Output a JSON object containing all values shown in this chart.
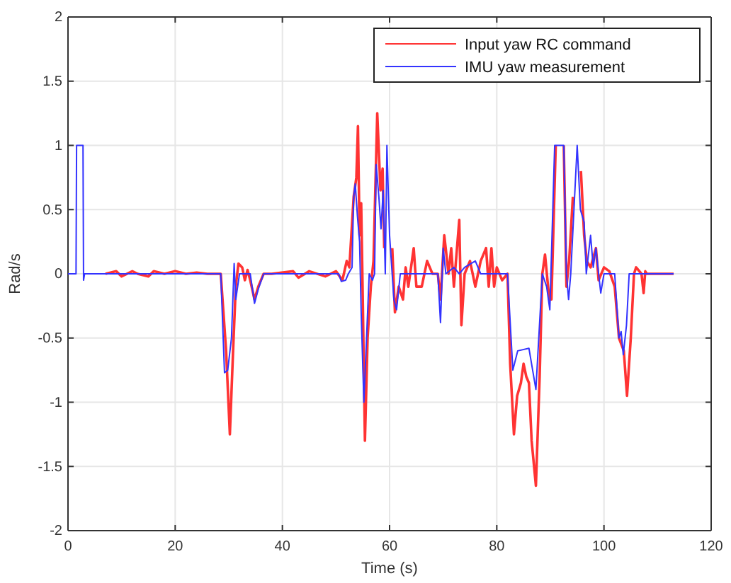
{
  "chart_data": {
    "type": "line",
    "xlabel": "Time (s)",
    "ylabel": "Rad/s",
    "xlim": [
      0,
      120
    ],
    "ylim": [
      -2,
      2
    ],
    "xticks": [
      0,
      20,
      40,
      60,
      80,
      100,
      120
    ],
    "yticks": [
      -2,
      -1.5,
      -1,
      -0.5,
      0,
      0.5,
      1,
      1.5,
      2
    ],
    "grid": true,
    "legend": "top right",
    "line_style": "solid",
    "series": [
      {
        "name": "Input yaw RC command",
        "color": "#ff3333",
        "x": [
          7,
          9,
          10,
          12,
          13,
          15,
          16,
          18,
          20,
          22,
          24,
          26,
          28.5,
          29.5,
          30.2,
          30.8,
          31.3,
          31.8,
          32.5,
          33,
          33.5,
          34,
          34.8,
          35.5,
          36.5,
          38,
          42,
          43,
          45,
          48,
          50,
          51.2,
          52,
          52.5,
          53.3,
          53.8,
          54.1,
          54.4,
          54.7,
          55,
          55.4,
          55.9,
          56.5,
          57,
          57.7,
          58.3,
          58.7,
          59,
          59.9,
          60.5,
          61,
          61.7,
          62.5,
          63,
          63.5,
          64.5,
          65,
          66,
          67,
          68,
          69,
          69.5,
          70.2,
          71,
          71.5,
          72,
          73,
          73.4,
          74,
          75,
          76,
          77,
          78,
          78.5,
          79,
          79.5,
          80,
          81,
          82,
          82.5,
          83.2,
          83.8,
          84.5,
          85,
          85.5,
          86,
          86.5,
          87.3,
          88,
          88.5,
          89,
          89.8,
          90.2,
          91,
          91.8,
          92.2,
          92.5,
          93,
          93.5,
          94.2,
          95,
          95.7,
          96.3,
          96.8,
          97.5,
          98.5,
          99,
          100,
          101,
          102,
          102.8,
          103.7,
          104.3,
          105,
          105.6,
          106,
          107,
          107.4,
          107.7,
          108,
          113
        ],
        "values": [
          0,
          0.02,
          -0.02,
          0.02,
          0,
          -0.02,
          0.02,
          0,
          0.02,
          0,
          0.01,
          0,
          0,
          -0.6,
          -1.25,
          -0.6,
          -0.1,
          0.08,
          0.05,
          -0.05,
          0.03,
          -0.05,
          -0.2,
          -0.1,
          0,
          0,
          0.02,
          -0.03,
          0.02,
          -0.02,
          0.02,
          -0.05,
          0.1,
          0.05,
          0.6,
          0.75,
          1.15,
          0.3,
          0.55,
          -0.2,
          -1.3,
          -0.5,
          -0.1,
          0.1,
          1.25,
          0.65,
          0.82,
          0.2,
          null,
          0.2,
          -0.3,
          -0.1,
          -0.2,
          0.05,
          -0.1,
          0.2,
          -0.1,
          -0.1,
          0.1,
          0,
          0,
          -0.2,
          0.3,
          0,
          0.2,
          -0.1,
          0.42,
          -0.4,
          0,
          0.1,
          -0.1,
          0.1,
          0.2,
          -0.1,
          0.2,
          -0.1,
          0.05,
          -0.05,
          0,
          -0.7,
          -1.25,
          -0.95,
          -0.85,
          -0.7,
          -0.8,
          -0.85,
          -1.3,
          -1.65,
          -0.8,
          0,
          0.15,
          -0.2,
          -0.2,
          1,
          null,
          null,
          1,
          -0.1,
          0.1,
          0.6,
          null,
          0.8,
          0.3,
          0.1,
          0.05,
          0.2,
          -0.05,
          0.05,
          0.02,
          -0.1,
          -0.5,
          -0.6,
          -0.95,
          -0.5,
          0,
          0.05,
          0,
          -0.15,
          0.02,
          0,
          0
        ]
      },
      {
        "name": "IMU yaw measurement",
        "color": "#3333ff",
        "x": [
          0,
          1.5,
          1.6,
          2.8,
          2.9,
          3.1,
          28.5,
          29.2,
          29.8,
          30.5,
          31,
          31.3,
          32,
          34,
          34.8,
          35.5,
          36.5,
          50.5,
          51,
          51.8,
          52.3,
          53,
          53.3,
          53.6,
          54,
          54.4,
          54.7,
          55.2,
          55.8,
          56.2,
          56.8,
          57.2,
          57.5,
          58,
          58.4,
          58.8,
          59.2,
          59.5,
          60,
          60.8,
          61.3,
          62,
          69,
          69.5,
          70,
          70.5,
          72,
          73,
          74,
          76,
          77,
          81,
          82,
          83,
          83.9,
          86,
          87.3,
          88.5,
          89.3,
          89.9,
          90.8,
          92.5,
          93,
          93.4,
          93.8,
          95,
          95.6,
          96.3,
          96.7,
          97.5,
          98,
          98.5,
          99,
          99.4,
          100,
          102,
          102.8,
          103.2,
          103.6,
          104.2,
          104.7,
          113
        ],
        "values": [
          0,
          0,
          1,
          1,
          -0.05,
          0,
          0,
          -0.77,
          -0.75,
          -0.5,
          0.08,
          -0.2,
          0,
          0,
          -0.23,
          -0.12,
          0,
          0,
          -0.06,
          -0.05,
          0,
          0.05,
          0.6,
          0.7,
          0.45,
          0.25,
          -0.3,
          -1,
          -0.4,
          0,
          -0.05,
          0,
          0.85,
          0.6,
          0.35,
          0.65,
          0,
          1,
          0.3,
          -0.2,
          -0.28,
          0,
          0,
          -0.38,
          0.2,
          0,
          0.05,
          0,
          0.05,
          0.1,
          0,
          0,
          0,
          -0.75,
          -0.6,
          -0.58,
          -0.9,
          0,
          -0.1,
          -0.28,
          1,
          1,
          0,
          -0.2,
          0,
          1,
          0.5,
          0.4,
          0,
          0.3,
          0.05,
          0.2,
          0,
          -0.15,
          0,
          0,
          -0.5,
          -0.45,
          -0.63,
          -0.4,
          0,
          0
        ]
      }
    ]
  }
}
